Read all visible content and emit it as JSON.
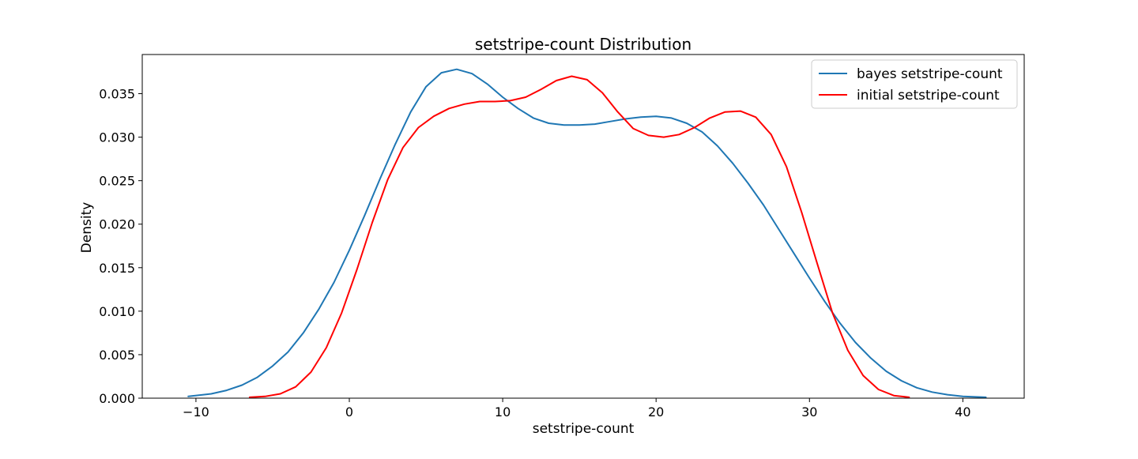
{
  "chart_data": {
    "type": "line",
    "title": "setstripe-count Distribution",
    "xlabel": "setstripe-count",
    "ylabel": "Density",
    "xlim": [
      -13.5,
      44.0
    ],
    "ylim": [
      0.0,
      0.0395
    ],
    "xticks": [
      -10,
      0,
      10,
      20,
      30,
      40
    ],
    "xtick_labels": [
      "−10",
      "0",
      "10",
      "20",
      "30",
      "40"
    ],
    "yticks": [
      0.0,
      0.005,
      0.01,
      0.015,
      0.02,
      0.025,
      0.03,
      0.035
    ],
    "ytick_labels": [
      "0.000",
      "0.005",
      "0.010",
      "0.015",
      "0.020",
      "0.025",
      "0.030",
      "0.035"
    ],
    "grid": false,
    "legend_position": "top-right",
    "series": [
      {
        "name": "bayes setstripe-count",
        "color": "#1f77b4",
        "points": [
          [
            -10.5,
            0.0002
          ],
          [
            -9.0,
            0.0005
          ],
          [
            -8.0,
            0.0009
          ],
          [
            -7.0,
            0.0015
          ],
          [
            -6.0,
            0.0024
          ],
          [
            -5.0,
            0.0037
          ],
          [
            -4.0,
            0.0053
          ],
          [
            -3.0,
            0.0075
          ],
          [
            -2.0,
            0.0102
          ],
          [
            -1.0,
            0.0133
          ],
          [
            0.0,
            0.017
          ],
          [
            1.0,
            0.021
          ],
          [
            2.0,
            0.0252
          ],
          [
            3.0,
            0.0292
          ],
          [
            4.0,
            0.0329
          ],
          [
            5.0,
            0.0358
          ],
          [
            6.0,
            0.0374
          ],
          [
            7.0,
            0.0378
          ],
          [
            8.0,
            0.0373
          ],
          [
            9.0,
            0.0361
          ],
          [
            10.0,
            0.0346
          ],
          [
            11.0,
            0.0333
          ],
          [
            12.0,
            0.0322
          ],
          [
            13.0,
            0.0316
          ],
          [
            14.0,
            0.0314
          ],
          [
            15.0,
            0.0314
          ],
          [
            16.0,
            0.0315
          ],
          [
            17.0,
            0.0318
          ],
          [
            18.0,
            0.0321
          ],
          [
            19.0,
            0.0323
          ],
          [
            20.0,
            0.0324
          ],
          [
            21.0,
            0.0322
          ],
          [
            22.0,
            0.0316
          ],
          [
            23.0,
            0.0306
          ],
          [
            24.0,
            0.029
          ],
          [
            25.0,
            0.027
          ],
          [
            26.0,
            0.0247
          ],
          [
            27.0,
            0.0222
          ],
          [
            28.0,
            0.0194
          ],
          [
            29.0,
            0.0166
          ],
          [
            30.0,
            0.0138
          ],
          [
            31.0,
            0.0111
          ],
          [
            32.0,
            0.0086
          ],
          [
            33.0,
            0.0064
          ],
          [
            34.0,
            0.0046
          ],
          [
            35.0,
            0.0031
          ],
          [
            36.0,
            0.002
          ],
          [
            37.0,
            0.0012
          ],
          [
            38.0,
            0.0007
          ],
          [
            39.0,
            0.0004
          ],
          [
            40.0,
            0.0002
          ],
          [
            41.5,
            0.0001
          ]
        ]
      },
      {
        "name": "initial setstripe-count",
        "color": "#ff0000",
        "points": [
          [
            -6.5,
            0.0001
          ],
          [
            -5.5,
            0.0002
          ],
          [
            -4.5,
            0.0005
          ],
          [
            -3.5,
            0.0013
          ],
          [
            -2.5,
            0.003
          ],
          [
            -1.5,
            0.0058
          ],
          [
            -0.5,
            0.0098
          ],
          [
            0.5,
            0.0148
          ],
          [
            1.5,
            0.0202
          ],
          [
            2.5,
            0.0251
          ],
          [
            3.5,
            0.0288
          ],
          [
            4.5,
            0.0311
          ],
          [
            5.5,
            0.0324
          ],
          [
            6.5,
            0.0333
          ],
          [
            7.5,
            0.0338
          ],
          [
            8.5,
            0.0341
          ],
          [
            9.5,
            0.0341
          ],
          [
            10.5,
            0.0342
          ],
          [
            11.5,
            0.0346
          ],
          [
            12.5,
            0.0355
          ],
          [
            13.5,
            0.0365
          ],
          [
            14.5,
            0.037
          ],
          [
            15.5,
            0.0366
          ],
          [
            16.5,
            0.0351
          ],
          [
            17.5,
            0.0329
          ],
          [
            18.5,
            0.031
          ],
          [
            19.5,
            0.0302
          ],
          [
            20.5,
            0.03
          ],
          [
            21.5,
            0.0303
          ],
          [
            22.5,
            0.0311
          ],
          [
            23.5,
            0.0322
          ],
          [
            24.5,
            0.0329
          ],
          [
            25.5,
            0.033
          ],
          [
            26.5,
            0.0323
          ],
          [
            27.5,
            0.0303
          ],
          [
            28.5,
            0.0266
          ],
          [
            29.5,
            0.0213
          ],
          [
            30.5,
            0.0155
          ],
          [
            31.5,
            0.0098
          ],
          [
            32.5,
            0.0055
          ],
          [
            33.5,
            0.0026
          ],
          [
            34.5,
            0.001
          ],
          [
            35.5,
            0.0003
          ],
          [
            36.5,
            0.0001
          ]
        ]
      }
    ]
  }
}
